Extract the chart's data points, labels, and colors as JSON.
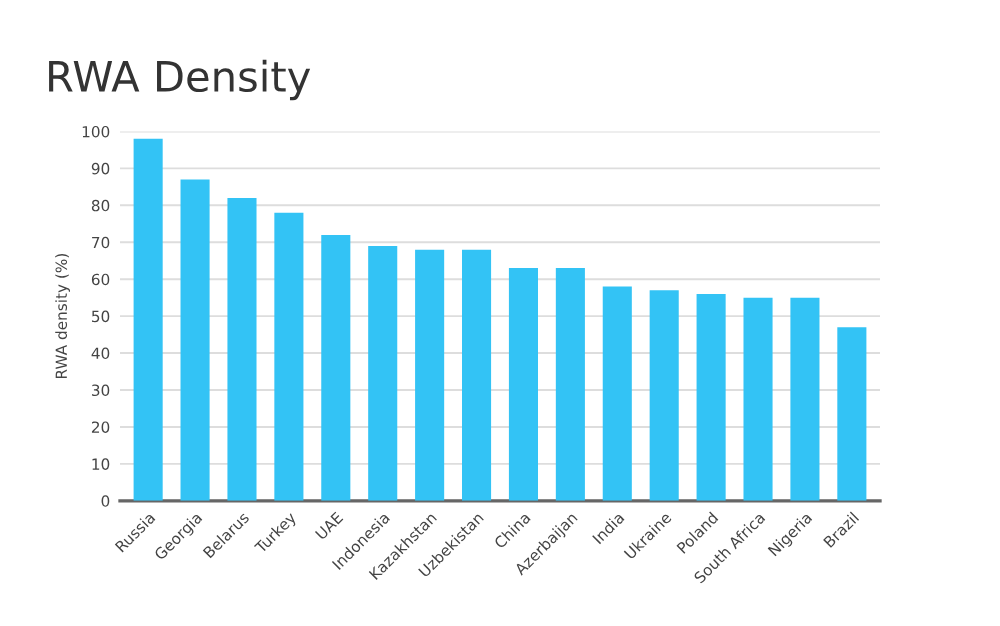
{
  "chart_data": {
    "type": "bar",
    "title": "RWA Density",
    "ylabel": "RWA density (%)",
    "categories": [
      "Russia",
      "Georgia",
      "Belarus",
      "Turkey",
      "UAE",
      "Indonesia",
      "Kazakhstan",
      "Uzbekistan",
      "China",
      "Azerbaijan",
      "India",
      "Ukraine",
      "Poland",
      "South Africa",
      "Nigeria",
      "Brazil"
    ],
    "values": [
      98,
      87,
      82,
      78,
      72,
      69,
      68,
      68,
      63,
      63,
      58,
      57,
      56,
      55,
      55,
      47
    ],
    "color": "#33c3f5",
    "ylim": [
      0,
      100
    ],
    "yticks": [
      0,
      10,
      20,
      30,
      40,
      50,
      60,
      70,
      80,
      90,
      100
    ],
    "grid": "y"
  }
}
